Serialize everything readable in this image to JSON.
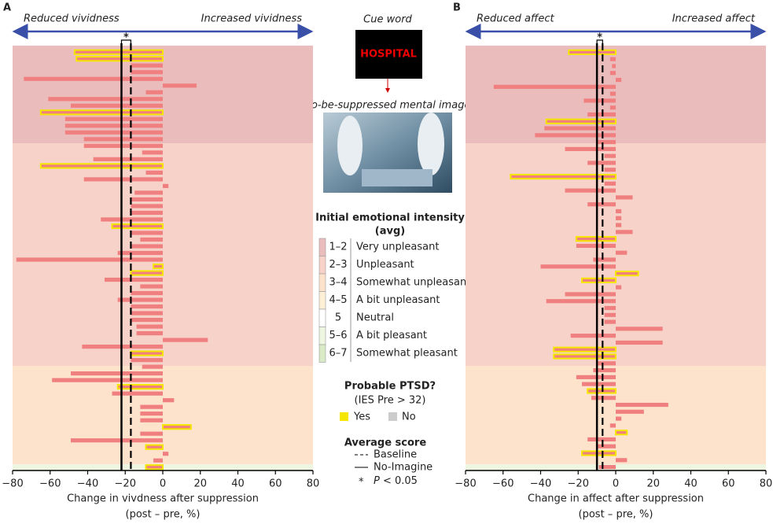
{
  "chart_data": [
    {
      "type": "hbar",
      "panel": "A",
      "direction_labels": [
        "Reduced vividness",
        "Increased vividness"
      ],
      "xlabel": "Change in vivdness after suppression",
      "xlabel_sub": "(post – pre, %)",
      "xlim": [
        -80,
        80
      ],
      "xticks": [
        {
          "value": -80,
          "label": "−80"
        },
        {
          "value": -60,
          "label": "−60"
        },
        {
          "value": -40,
          "label": "−40"
        },
        {
          "value": -20,
          "label": "−20"
        },
        0,
        20,
        40,
        60,
        80
      ],
      "color": "#f08080",
      "ptsd_color": "#f5e600",
      "values": [
        -47,
        -46,
        -17,
        -17,
        -74,
        18,
        -9,
        -61,
        -49,
        -65,
        -52,
        -52,
        -52,
        -42,
        -42,
        -11,
        -37,
        -65,
        -9,
        -42,
        3,
        -15,
        -17,
        -17,
        -17,
        -33,
        -27,
        -17,
        -12,
        -17,
        -24,
        -78,
        -5,
        -17,
        -31,
        -12,
        -17,
        -24,
        -17,
        -17,
        -17,
        -14,
        -14,
        24,
        -43,
        -17,
        -17,
        -11,
        -49,
        -59,
        -24,
        -27,
        6,
        -12,
        -12,
        -12,
        15,
        -12,
        -49,
        -9,
        3,
        -5,
        -9
      ],
      "ptsd": [
        true,
        true,
        false,
        false,
        false,
        false,
        false,
        false,
        false,
        true,
        false,
        false,
        false,
        false,
        false,
        false,
        false,
        true,
        false,
        false,
        false,
        false,
        false,
        false,
        false,
        false,
        true,
        false,
        false,
        false,
        false,
        false,
        true,
        true,
        false,
        false,
        false,
        false,
        false,
        false,
        false,
        false,
        false,
        false,
        false,
        true,
        false,
        false,
        false,
        false,
        true,
        false,
        false,
        false,
        false,
        false,
        true,
        false,
        false,
        true,
        false,
        false,
        true
      ],
      "baseline": -17,
      "no_imagine": -22,
      "significance": "*"
    },
    {
      "type": "hbar",
      "panel": "B",
      "direction_labels": [
        "Reduced affect",
        "Increased affect"
      ],
      "xlabel": "Change in affect after suppression",
      "xlabel_sub": "(post – pre, %)",
      "xlim": [
        -80,
        80
      ],
      "xticks": [
        {
          "value": -80,
          "label": "−80"
        },
        {
          "value": -60,
          "label": "−60"
        },
        {
          "value": -40,
          "label": "−40"
        },
        {
          "value": -20,
          "label": "−20"
        },
        0,
        20,
        40,
        60,
        80
      ],
      "color": "#f08080",
      "ptsd_color": "#f5e600",
      "values": [
        -25,
        -3,
        -2,
        -3,
        3,
        -65,
        -3,
        -17,
        -3,
        -15,
        -37,
        -38,
        -43,
        -10,
        -27,
        -6,
        -15,
        -6,
        -56,
        -6,
        -27,
        9,
        -15,
        3,
        3,
        3,
        9,
        -21,
        -21,
        6,
        -12,
        -40,
        12,
        -18,
        3,
        -27,
        -37,
        -6,
        -6,
        -6,
        25,
        -24,
        25,
        -33,
        -33,
        -10,
        -12,
        -21,
        -18,
        -15,
        -13,
        28,
        15,
        3,
        -3,
        6,
        -15,
        -10,
        -18,
        6,
        -9
      ],
      "ptsd": [
        true,
        false,
        false,
        false,
        false,
        false,
        false,
        false,
        false,
        false,
        true,
        false,
        false,
        false,
        false,
        false,
        false,
        false,
        true,
        false,
        false,
        false,
        false,
        false,
        false,
        false,
        false,
        true,
        false,
        false,
        false,
        false,
        true,
        true,
        false,
        false,
        false,
        false,
        false,
        false,
        false,
        false,
        false,
        true,
        true,
        false,
        false,
        false,
        false,
        true,
        false,
        false,
        false,
        false,
        false,
        true,
        false,
        false,
        true,
        false,
        false
      ],
      "baseline": -7,
      "no_imagine": -10,
      "significance": "*"
    }
  ],
  "middle": {
    "cue_title": "Cue word",
    "cue_word": "HOSPITAL",
    "image_caption": "To-be-suppressed mental image",
    "intensity_title": "Initial emotional intensity",
    "intensity_sub": "(avg)",
    "intensity_levels": [
      {
        "range": "1–2",
        "label": "Very unpleasant"
      },
      {
        "range": "2–3",
        "label": "Unpleasant"
      },
      {
        "range": "3–4",
        "label": "Somewhat unpleasant"
      },
      {
        "range": "4–5",
        "label": "A bit unpleasant"
      },
      {
        "range": "5",
        "label": "Neutral"
      },
      {
        "range": "5–6",
        "label": "A bit pleasant"
      },
      {
        "range": "6–7",
        "label": "Somewhat pleasant"
      }
    ],
    "ptsd_title": "Probable PTSD?",
    "ptsd_sub": "(IES Pre > 32)",
    "ptsd_yes": "Yes",
    "ptsd_no": "No",
    "avg_title": "Average score",
    "avg_baseline": "Baseline",
    "avg_no_imagine": "No-Imagine",
    "avg_sig_mark": "*",
    "avg_sig_p": "P",
    "avg_sig_rest": " < 0.05"
  }
}
